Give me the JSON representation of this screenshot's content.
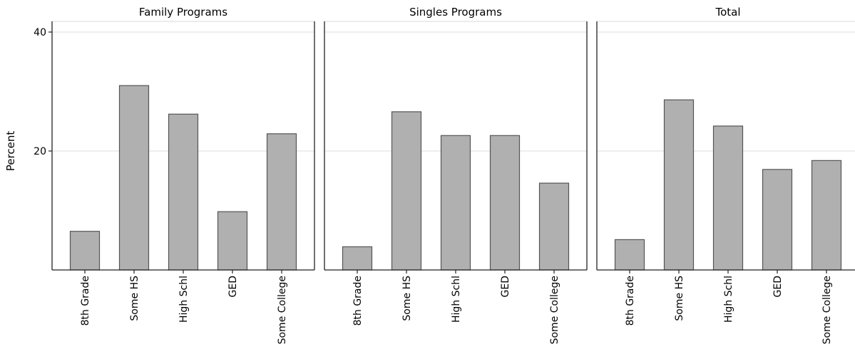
{
  "chart_data": {
    "type": "bar",
    "ylabel": "Percent",
    "xlabel": "",
    "ylim": [
      0,
      40
    ],
    "yticks": [
      20,
      40
    ],
    "grid": true,
    "bar_color": "#b0b0b0",
    "bar_edge_color": "#555555",
    "categories": [
      "8th Grade",
      "Some HS",
      "High Schl",
      "GED",
      "Some College"
    ],
    "panels": [
      {
        "title": "Family Programs",
        "values": [
          6.5,
          31,
          26.2,
          9.8,
          22.9
        ]
      },
      {
        "title": "Singles Programs",
        "values": [
          3.9,
          26.6,
          22.6,
          22.6,
          14.6
        ]
      },
      {
        "title": "Total",
        "values": [
          5.1,
          28.6,
          24.2,
          16.9,
          18.4
        ]
      }
    ]
  }
}
